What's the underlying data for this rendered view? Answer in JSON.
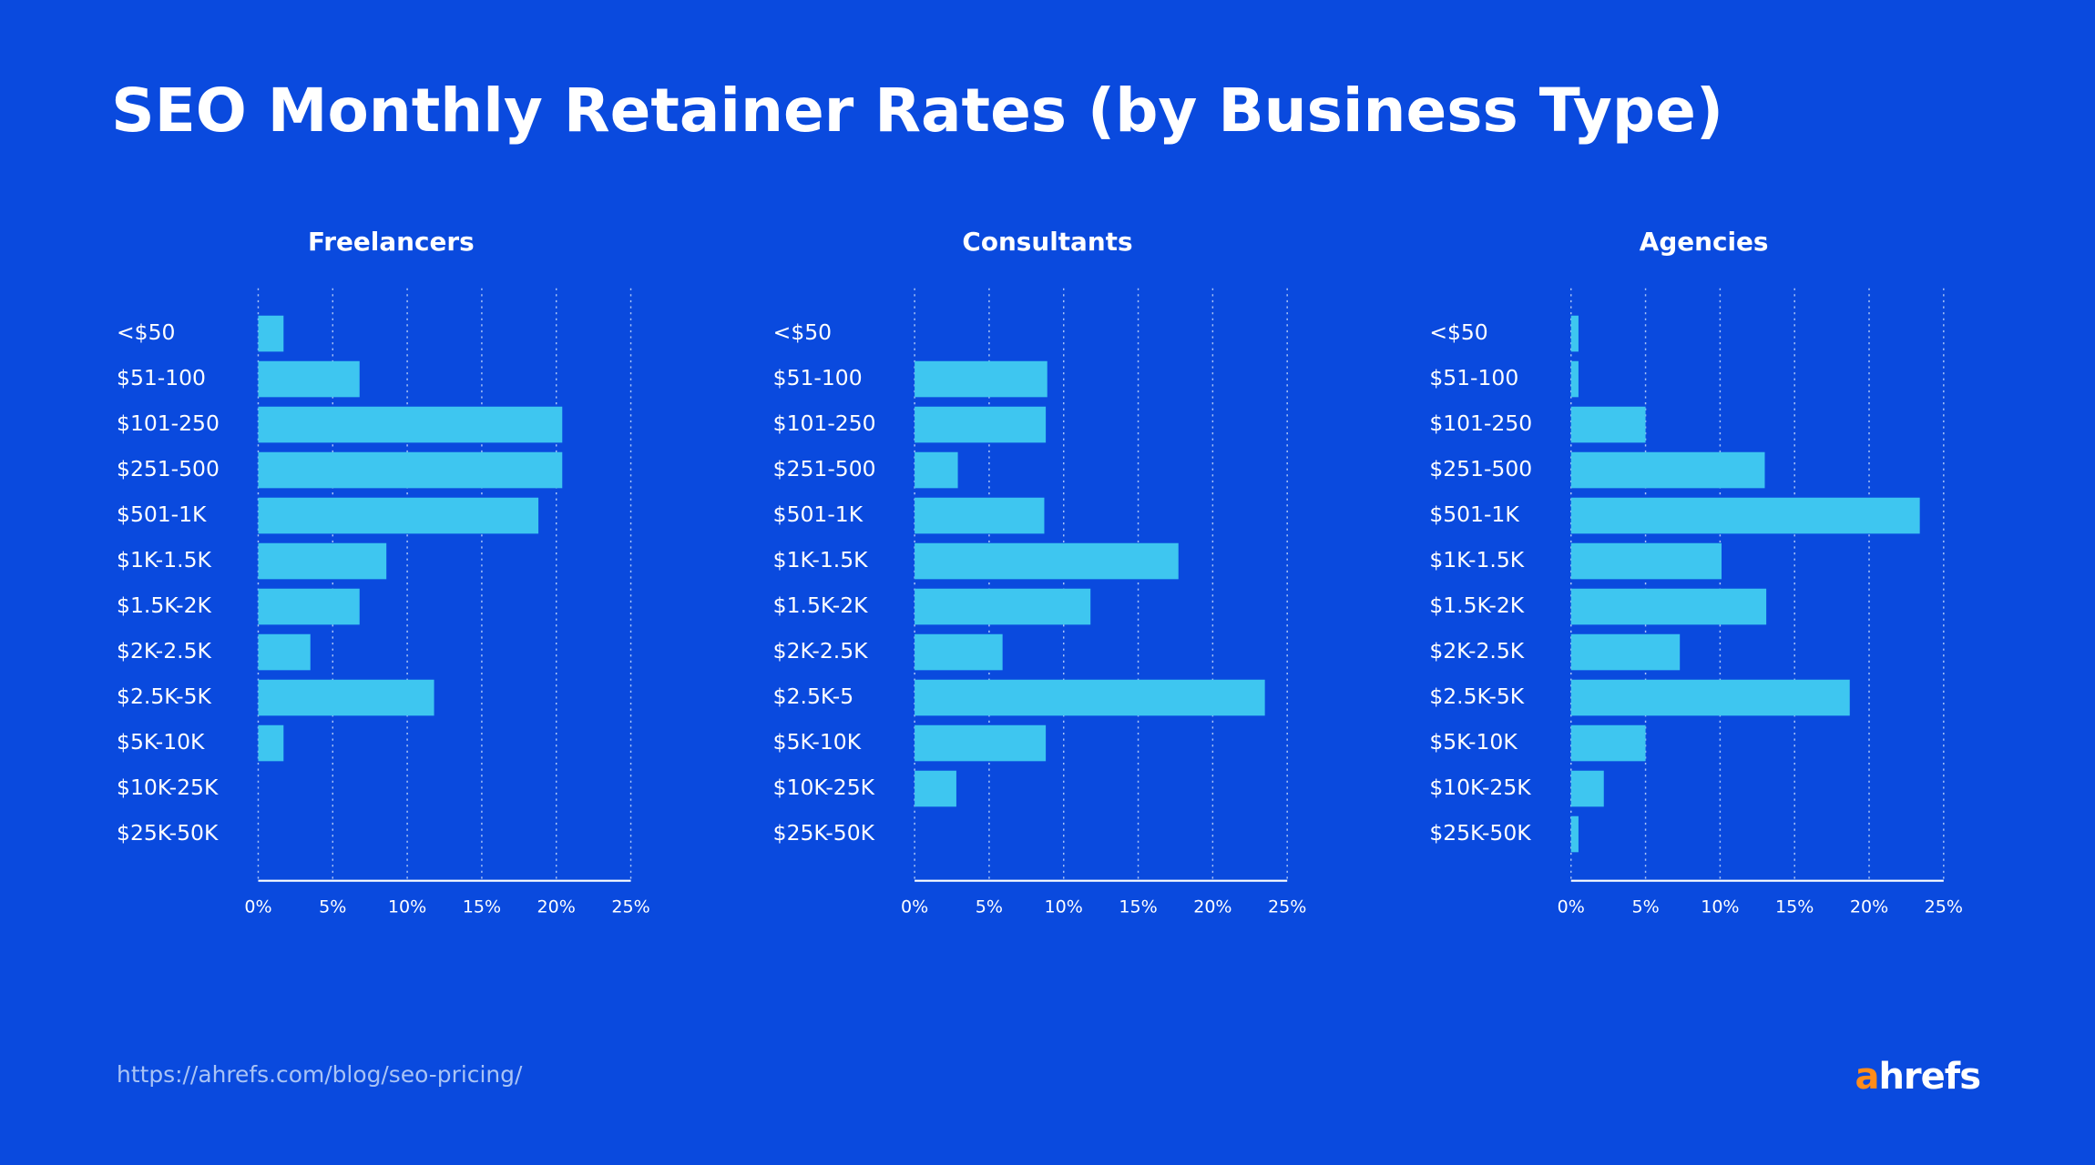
{
  "header": {
    "title": "SEO Monthly Retainer Rates (by Business Type)"
  },
  "footer": {
    "source": "https://ahrefs.com/blog/seo-pricing/",
    "brand": "ahrefs"
  },
  "chart_data": [
    {
      "type": "bar",
      "orientation": "horizontal",
      "title": "Freelancers",
      "categories": [
        "<$50",
        "$51-100",
        "$101-250",
        "$251-500",
        "$501-1K",
        "$1K-1.5K",
        "$1.5K-2K",
        "$2K-2.5K",
        "$2.5K-5K",
        "$5K-10K",
        "$10K-25K",
        "$25K-50K"
      ],
      "values": [
        1.7,
        6.8,
        20.4,
        20.4,
        18.8,
        8.6,
        6.8,
        3.5,
        11.8,
        1.7,
        0,
        0
      ],
      "color": "#3ec6f0",
      "xlim": [
        0,
        25
      ],
      "grid": true,
      "xticks": [
        {
          "value": 0,
          "label": "0%"
        },
        {
          "value": 5,
          "label": "5%"
        },
        {
          "value": 10,
          "label": "10%"
        },
        {
          "value": 15,
          "label": "15%"
        },
        {
          "value": 20,
          "label": "20%"
        },
        {
          "value": 25,
          "label": "25%"
        }
      ]
    },
    {
      "type": "bar",
      "orientation": "horizontal",
      "title": "Consultants",
      "categories": [
        "<$50",
        "$51-100",
        "$101-250",
        "$251-500",
        "$501-1K",
        "$1K-1.5K",
        "$1.5K-2K",
        "$2K-2.5K",
        "$2.5K-5",
        "$5K-10K",
        "$10K-25K",
        "$25K-50K"
      ],
      "values": [
        0,
        8.9,
        8.8,
        2.9,
        8.7,
        17.7,
        11.8,
        5.9,
        23.5,
        8.8,
        2.8,
        0
      ],
      "color": "#3ec6f0",
      "xlim": [
        0,
        25
      ],
      "grid": true,
      "xticks": [
        {
          "value": 0,
          "label": "0%"
        },
        {
          "value": 5,
          "label": "5%"
        },
        {
          "value": 10,
          "label": "10%"
        },
        {
          "value": 15,
          "label": "15%"
        },
        {
          "value": 20,
          "label": "20%"
        },
        {
          "value": 25,
          "label": "25%"
        }
      ]
    },
    {
      "type": "bar",
      "orientation": "horizontal",
      "title": "Agencies",
      "categories": [
        "<$50",
        "$51-100",
        "$101-250",
        "$251-500",
        "$501-1K",
        "$1K-1.5K",
        "$1.5K-2K",
        "$2K-2.5K",
        "$2.5K-5K",
        "$5K-10K",
        "$10K-25K",
        "$25K-50K"
      ],
      "values": [
        0.5,
        0.5,
        5.0,
        13.0,
        23.4,
        10.1,
        13.1,
        7.3,
        18.7,
        5.0,
        2.2,
        0.5
      ],
      "color": "#3ec6f0",
      "xlim": [
        0,
        25
      ],
      "grid": true,
      "xticks": [
        {
          "value": 0,
          "label": "0%"
        },
        {
          "value": 5,
          "label": "5%"
        },
        {
          "value": 10,
          "label": "10%"
        },
        {
          "value": 15,
          "label": "15%"
        },
        {
          "value": 20,
          "label": "20%"
        },
        {
          "value": 25,
          "label": "25%"
        }
      ]
    }
  ]
}
